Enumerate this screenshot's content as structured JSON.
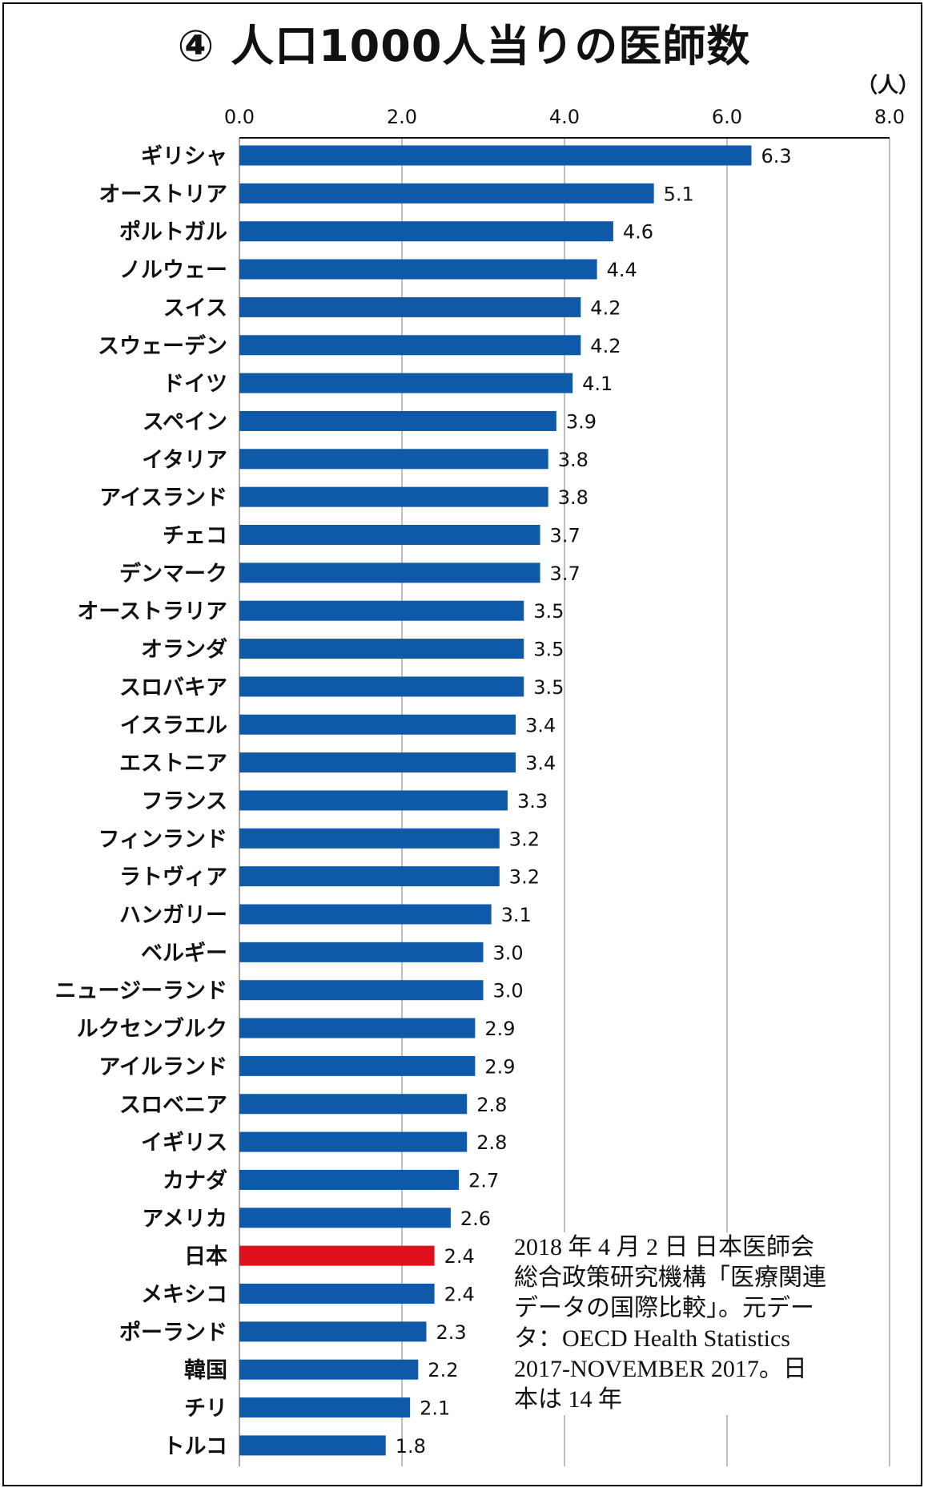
{
  "chart_data": {
    "type": "bar",
    "orientation": "horizontal",
    "title": "④ 人口1000人当りの医師数",
    "unit": "（人）",
    "xlim": [
      0,
      8
    ],
    "ticks": [
      "0.0",
      "2.0",
      "4.0",
      "6.0",
      "8.0"
    ],
    "grid": true,
    "categories": [
      "ギリシャ",
      "オーストリア",
      "ポルトガル",
      "ノルウェー",
      "スイス",
      "スウェーデン",
      "ドイツ",
      "スペイン",
      "イタリア",
      "アイスランド",
      "チェコ",
      "デンマーク",
      "オーストラリア",
      "オランダ",
      "スロバキア",
      "イスラエル",
      "エストニア",
      "フランス",
      "フィンランド",
      "ラトヴィア",
      "ハンガリー",
      "ベルギー",
      "ニュージーランド",
      "ルクセンブルク",
      "アイルランド",
      "スロベニア",
      "イギリス",
      "カナダ",
      "アメリカ",
      "日本",
      "メキシコ",
      "ポーランド",
      "韓国",
      "チリ",
      "トルコ"
    ],
    "values": [
      6.3,
      5.1,
      4.6,
      4.4,
      4.2,
      4.2,
      4.1,
      3.9,
      3.8,
      3.8,
      3.7,
      3.7,
      3.5,
      3.5,
      3.5,
      3.4,
      3.4,
      3.3,
      3.2,
      3.2,
      3.1,
      3.0,
      3.0,
      2.9,
      2.9,
      2.8,
      2.8,
      2.7,
      2.6,
      2.4,
      2.4,
      2.3,
      2.2,
      2.1,
      1.8
    ],
    "value_labels": [
      "6.3",
      "5.1",
      "4.6",
      "4.4",
      "4.2",
      "4.2",
      "4.1",
      "3.9",
      "3.8",
      "3.8",
      "3.7",
      "3.7",
      "3.5",
      "3.5",
      "3.5",
      "3.4",
      "3.4",
      "3.3",
      "3.2",
      "3.2",
      "3.1",
      "3.0",
      "3.0",
      "2.9",
      "2.9",
      "2.8",
      "2.8",
      "2.7",
      "2.6",
      "2.4",
      "2.4",
      "2.3",
      "2.2",
      "2.1",
      "1.8"
    ],
    "highlight": "日本",
    "colors": {
      "bar": "#0f5aa8",
      "highlight": "#e0101f",
      "grid": "#a9a9a9",
      "text": "#111111"
    }
  },
  "note": "2018 年 4 月 2 日 日本医師会\n総合政策研究機構「医療関連\nデータの国際比較」。元デー\nタ：OECD Health Statistics\n2017-NOVEMBER 2017。日\n本は 14 年"
}
